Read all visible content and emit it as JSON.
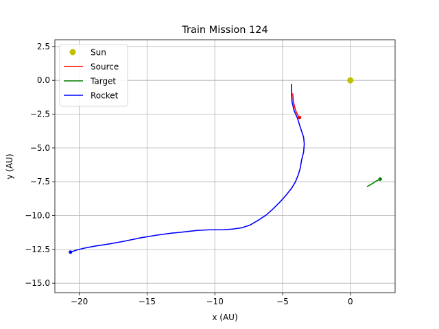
{
  "chart_data": {
    "type": "line",
    "title": "Train Mission 124",
    "xlabel": "x (AU)",
    "ylabel": "y (AU)",
    "xlim": [
      -21.8,
      3.3
    ],
    "ylim": [
      -15.7,
      3.0
    ],
    "grid": true,
    "legend_position": "top-left",
    "x_ticks": [
      -20,
      -15,
      -10,
      -5,
      0
    ],
    "x_tick_labels": [
      "−20",
      "−15",
      "−10",
      "−5",
      "0"
    ],
    "y_ticks": [
      2.5,
      0,
      -2.5,
      -5,
      -7.5,
      -10,
      -12.5,
      -15
    ],
    "y_tick_labels": [
      "2.5",
      "0.0",
      "−2.5",
      "−5.0",
      "−7.5",
      "−10.0",
      "−12.5",
      "−15.0"
    ],
    "series": [
      {
        "name": "Sun",
        "kind": "marker",
        "color": "#bfbf00",
        "x": [
          0.0
        ],
        "y": [
          0.0
        ]
      },
      {
        "name": "Source",
        "kind": "line",
        "color": "#ff0000",
        "x": [
          -4.25,
          -4.2,
          -4.05,
          -3.9,
          -3.75
        ],
        "y": [
          -1.0,
          -1.6,
          -2.2,
          -2.55,
          -2.75
        ],
        "end_marker": true
      },
      {
        "name": "Target",
        "kind": "line",
        "color": "#008000",
        "x": [
          1.25,
          1.6,
          1.9,
          2.2
        ],
        "y": [
          -7.85,
          -7.65,
          -7.45,
          -7.3
        ],
        "end_marker": true
      },
      {
        "name": "Rocket",
        "kind": "line",
        "color": "#0000ff",
        "x": [
          -4.35,
          -4.35,
          -4.3,
          -4.15,
          -3.9,
          -3.75,
          -3.6,
          -3.45,
          -3.4,
          -3.45,
          -3.6,
          -3.7,
          -3.85,
          -4.05,
          -4.35,
          -4.75,
          -5.2,
          -5.7,
          -6.2,
          -6.8,
          -7.4,
          -8.0,
          -8.7,
          -9.5,
          -10.4,
          -11.3,
          -12.2,
          -13.2,
          -14.3,
          -15.5,
          -16.7,
          -17.8,
          -18.8,
          -19.6,
          -20.2,
          -20.65
        ],
        "y": [
          -0.3,
          -0.9,
          -1.6,
          -2.25,
          -2.8,
          -3.3,
          -3.75,
          -4.2,
          -4.7,
          -5.3,
          -5.9,
          -6.5,
          -7.0,
          -7.5,
          -8.0,
          -8.5,
          -9.0,
          -9.5,
          -9.95,
          -10.35,
          -10.7,
          -10.9,
          -11.0,
          -11.05,
          -11.05,
          -11.1,
          -11.2,
          -11.3,
          -11.45,
          -11.65,
          -11.9,
          -12.1,
          -12.25,
          -12.4,
          -12.55,
          -12.7
        ],
        "end_marker": true
      }
    ]
  }
}
